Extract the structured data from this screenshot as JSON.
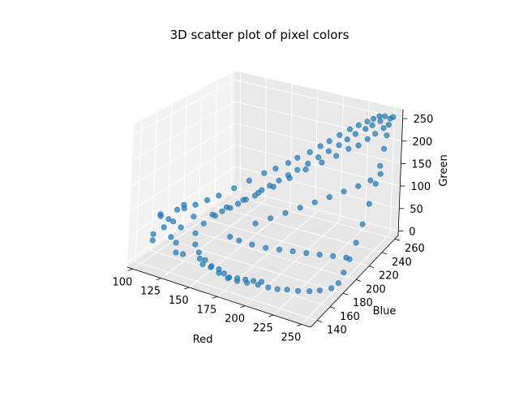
{
  "chart_data": {
    "type": "scatter",
    "projection": "3d",
    "title": "3D scatter plot of pixel colors",
    "xlabel": "Red",
    "ylabel": "Blue",
    "zlabel": "Green",
    "xlim": [
      95,
      258
    ],
    "ylim": [
      130,
      265
    ],
    "zlim": [
      -10,
      270
    ],
    "xticks": [
      100,
      125,
      150,
      175,
      200,
      225,
      250
    ],
    "yticks": [
      140,
      160,
      180,
      200,
      220,
      240,
      260
    ],
    "zticks": [
      0,
      50,
      100,
      150,
      200,
      250
    ],
    "grid": true,
    "legend": "none",
    "marker_color": "#1f77b4",
    "series": [
      {
        "points": [
          [
            100,
            165,
            58
          ],
          [
            102,
            162,
            66
          ],
          [
            105,
            168,
            52
          ],
          [
            108,
            158,
            48
          ],
          [
            110,
            172,
            70
          ],
          [
            104,
            150,
            40
          ],
          [
            112,
            178,
            75
          ],
          [
            115,
            160,
            62
          ],
          [
            118,
            170,
            80
          ],
          [
            107,
            145,
            35
          ],
          [
            120,
            150,
            45
          ],
          [
            122,
            160,
            55
          ],
          [
            126,
            148,
            40
          ],
          [
            130,
            142,
            30
          ],
          [
            135,
            144,
            28
          ],
          [
            128,
            168,
            72
          ],
          [
            124,
            176,
            85
          ],
          [
            132,
            180,
            95
          ],
          [
            140,
            184,
            105
          ],
          [
            150,
            190,
            120
          ],
          [
            160,
            196,
            135
          ],
          [
            170,
            202,
            150
          ],
          [
            178,
            206,
            160
          ],
          [
            186,
            212,
            170
          ],
          [
            192,
            216,
            180
          ],
          [
            200,
            222,
            190
          ],
          [
            206,
            228,
            200
          ],
          [
            212,
            232,
            210
          ],
          [
            218,
            238,
            220
          ],
          [
            224,
            244,
            230
          ],
          [
            230,
            248,
            238
          ],
          [
            236,
            252,
            245
          ],
          [
            240,
            255,
            250
          ],
          [
            244,
            258,
            255
          ],
          [
            248,
            260,
            255
          ],
          [
            252,
            262,
            250
          ],
          [
            255,
            262,
            255
          ],
          [
            250,
            255,
            235
          ],
          [
            245,
            250,
            225
          ],
          [
            240,
            246,
            215
          ],
          [
            235,
            240,
            205
          ],
          [
            228,
            236,
            198
          ],
          [
            220,
            230,
            185
          ],
          [
            210,
            224,
            172
          ],
          [
            200,
            216,
            160
          ],
          [
            190,
            208,
            145
          ],
          [
            180,
            200,
            130
          ],
          [
            170,
            194,
            118
          ],
          [
            160,
            188,
            104
          ],
          [
            150,
            180,
            92
          ],
          [
            145,
            172,
            80
          ],
          [
            140,
            164,
            70
          ],
          [
            138,
            156,
            58
          ],
          [
            142,
            150,
            45
          ],
          [
            148,
            146,
            38
          ],
          [
            155,
            144,
            30
          ],
          [
            162,
            142,
            25
          ],
          [
            170,
            140,
            20
          ],
          [
            178,
            140,
            15
          ],
          [
            185,
            142,
            12
          ],
          [
            192,
            145,
            10
          ],
          [
            200,
            148,
            8
          ],
          [
            208,
            150,
            6
          ],
          [
            215,
            152,
            5
          ],
          [
            222,
            155,
            5
          ],
          [
            230,
            158,
            4
          ],
          [
            238,
            162,
            4
          ],
          [
            245,
            166,
            5
          ],
          [
            252,
            172,
            6
          ],
          [
            255,
            178,
            10
          ],
          [
            255,
            186,
            20
          ],
          [
            255,
            195,
            35
          ],
          [
            255,
            205,
            55
          ],
          [
            255,
            215,
            80
          ],
          [
            255,
            225,
            110
          ],
          [
            255,
            235,
            140
          ],
          [
            255,
            242,
            170
          ],
          [
            255,
            248,
            200
          ],
          [
            255,
            252,
            225
          ],
          [
            255,
            255,
            245
          ],
          [
            250,
            250,
            255
          ],
          [
            246,
            244,
            250
          ],
          [
            242,
            240,
            244
          ],
          [
            236,
            234,
            236
          ],
          [
            232,
            228,
            228
          ],
          [
            228,
            222,
            220
          ],
          [
            222,
            216,
            210
          ],
          [
            216,
            210,
            200
          ],
          [
            210,
            204,
            190
          ],
          [
            204,
            198,
            180
          ],
          [
            198,
            194,
            170
          ],
          [
            192,
            190,
            160
          ],
          [
            186,
            186,
            150
          ],
          [
            180,
            184,
            140
          ],
          [
            175,
            182,
            128
          ],
          [
            168,
            180,
            118
          ],
          [
            162,
            178,
            108
          ],
          [
            156,
            176,
            98
          ],
          [
            150,
            174,
            90
          ],
          [
            144,
            170,
            84
          ],
          [
            146,
            150,
            20
          ],
          [
            150,
            148,
            14
          ],
          [
            156,
            150,
            10
          ],
          [
            162,
            152,
            8
          ],
          [
            168,
            150,
            6
          ],
          [
            174,
            148,
            5
          ],
          [
            180,
            150,
            5
          ],
          [
            186,
            152,
            4
          ],
          [
            192,
            154,
            3
          ],
          [
            198,
            156,
            3
          ],
          [
            170,
            190,
            60
          ],
          [
            180,
            196,
            70
          ],
          [
            190,
            202,
            80
          ],
          [
            200,
            208,
            90
          ],
          [
            210,
            214,
            100
          ],
          [
            220,
            220,
            110
          ],
          [
            230,
            226,
            120
          ],
          [
            240,
            232,
            130
          ],
          [
            248,
            238,
            140
          ],
          [
            254,
            244,
            150
          ],
          [
            160,
            170,
            50
          ],
          [
            165,
            175,
            40
          ],
          [
            175,
            178,
            35
          ],
          [
            185,
            182,
            30
          ],
          [
            195,
            186,
            28
          ],
          [
            205,
            190,
            26
          ],
          [
            215,
            194,
            24
          ],
          [
            225,
            198,
            22
          ],
          [
            235,
            202,
            20
          ],
          [
            245,
            206,
            18
          ]
        ]
      }
    ]
  }
}
